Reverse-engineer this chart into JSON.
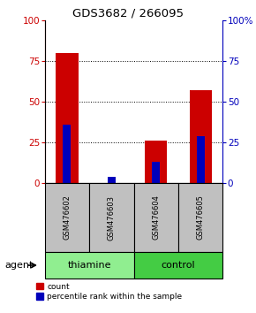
{
  "title": "GDS3682 / 266095",
  "samples": [
    "GSM476602",
    "GSM476603",
    "GSM476604",
    "GSM476605"
  ],
  "red_values": [
    80,
    0,
    26,
    57
  ],
  "blue_values": [
    36,
    4,
    13,
    29
  ],
  "groups": [
    {
      "label": "thiamine",
      "color": "#90EE90",
      "indices": [
        0,
        1
      ]
    },
    {
      "label": "control",
      "color": "#44CC44",
      "indices": [
        2,
        3
      ]
    }
  ],
  "agent_label": "agent",
  "ylim": [
    0,
    100
  ],
  "yticks": [
    0,
    25,
    50,
    75,
    100
  ],
  "left_axis_color": "#CC0000",
  "right_axis_color": "#0000BB",
  "red_bar_width": 0.5,
  "blue_bar_width": 0.18,
  "label_count": "count",
  "label_percentile": "percentile rank within the sample",
  "sample_box_color": "#C0C0C0",
  "divider_color": "#888888"
}
